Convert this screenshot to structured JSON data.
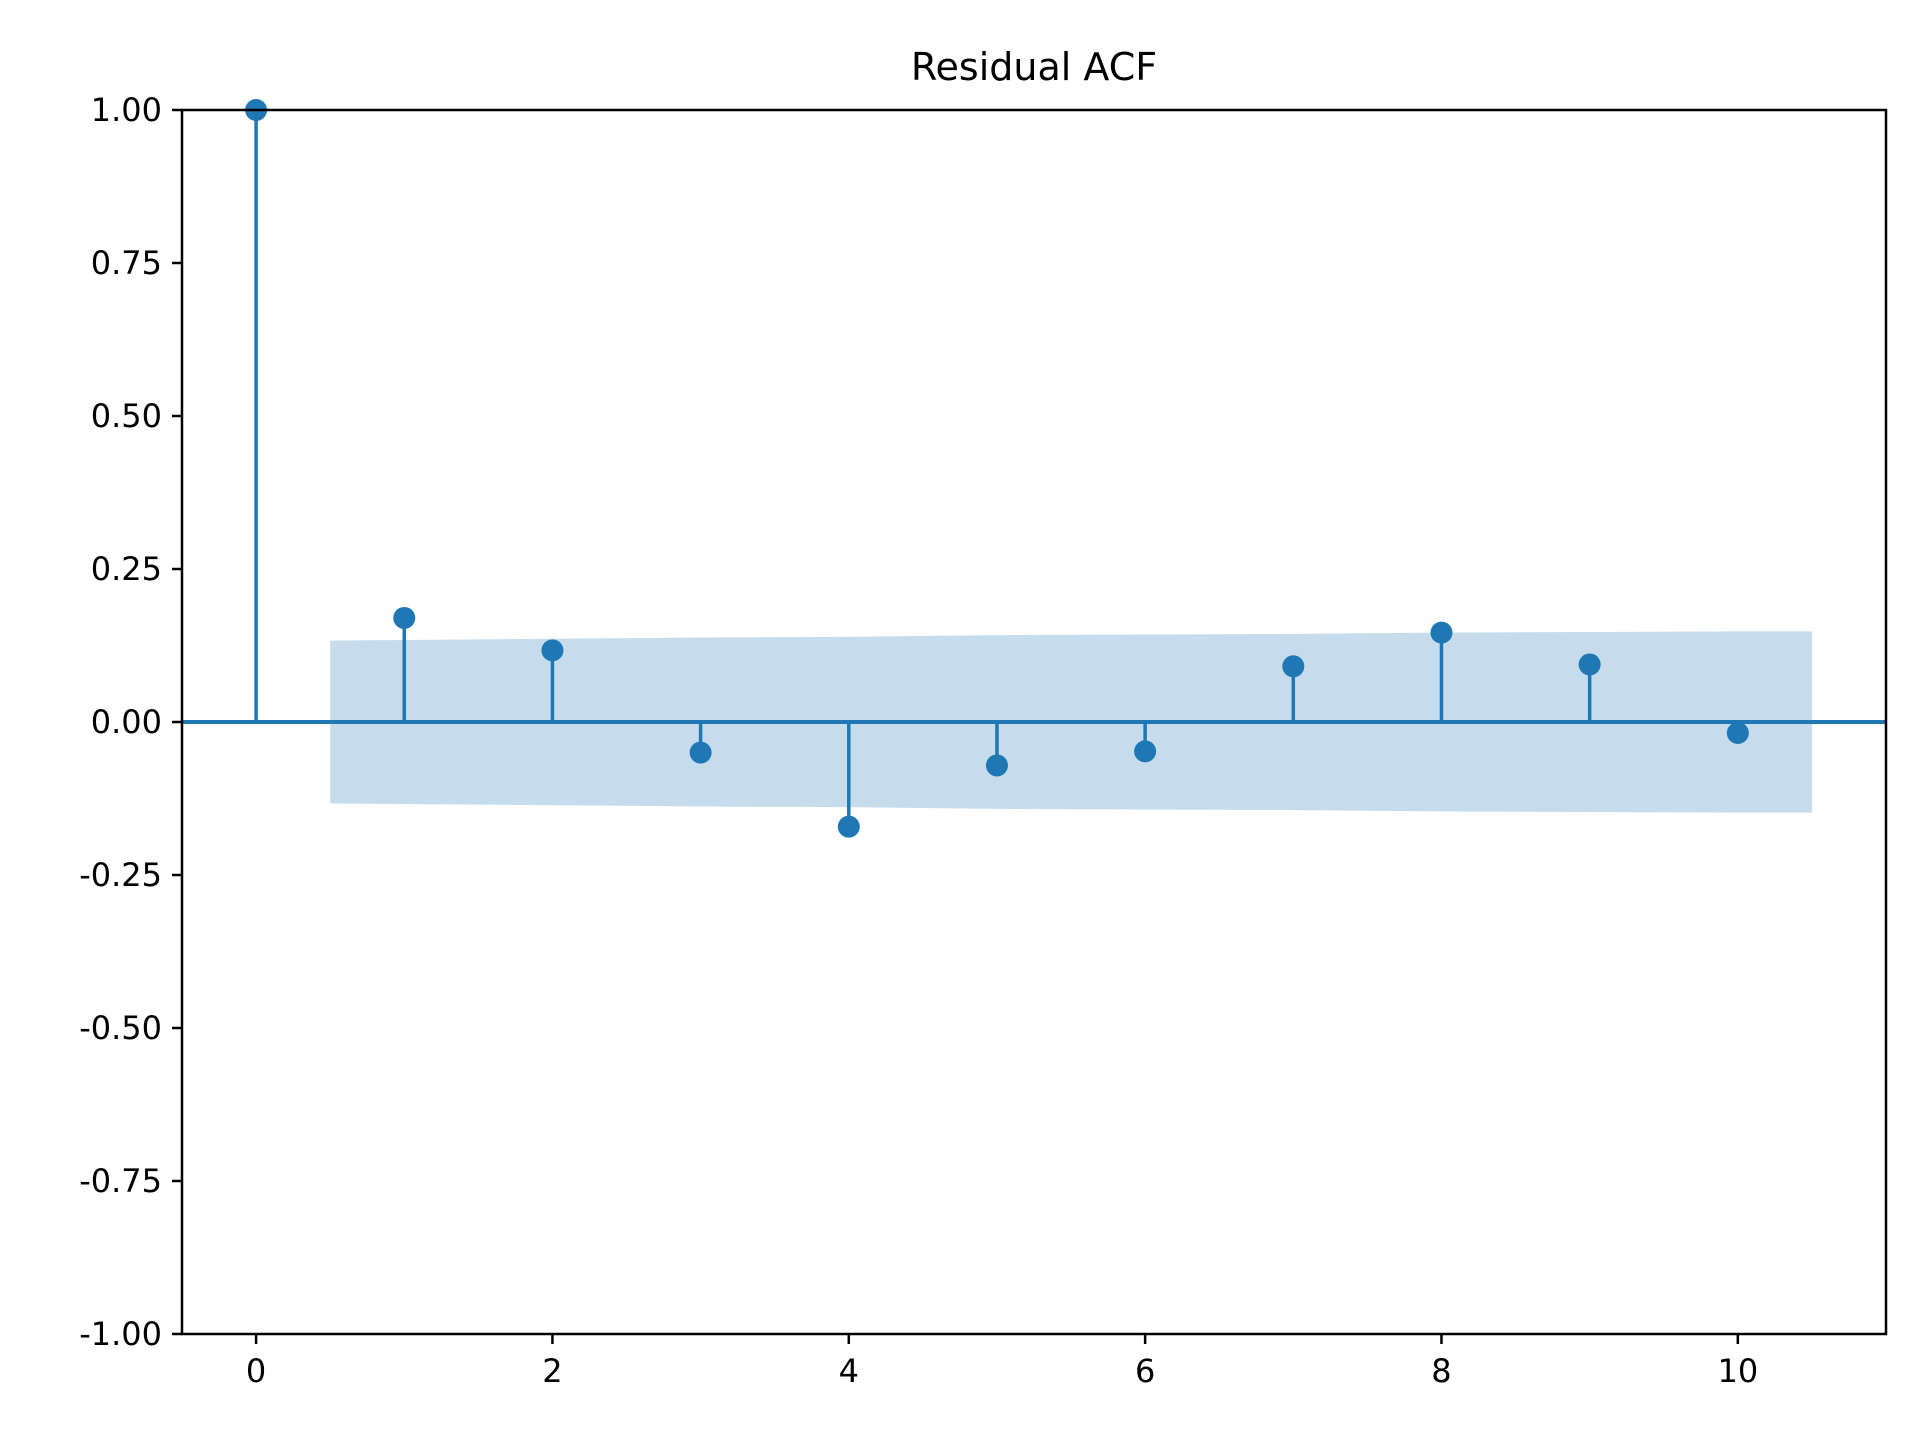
{
  "chart_data": {
    "type": "stem",
    "title": "Residual ACF",
    "xlabel": "",
    "ylabel": "",
    "xlim": [
      -0.5,
      11
    ],
    "ylim": [
      -1.0,
      1.0
    ],
    "x_ticks": [
      0,
      2,
      4,
      6,
      8,
      10
    ],
    "y_ticks": [
      1.0,
      0.75,
      0.5,
      0.25,
      0.0,
      -0.25,
      -0.5,
      -0.75,
      -1.0
    ],
    "y_tick_labels": [
      "1.00",
      "0.75",
      "0.50",
      "0.25",
      "0.00",
      "-0.25",
      "-0.50",
      "-0.75",
      "-1.00"
    ],
    "x_tick_labels": [
      "0",
      "2",
      "4",
      "6",
      "8",
      "10"
    ],
    "lags": [
      0,
      1,
      2,
      3,
      4,
      5,
      6,
      7,
      8,
      9,
      10
    ],
    "values": [
      1.0,
      0.17,
      0.117,
      -0.05,
      -0.171,
      -0.071,
      -0.048,
      0.091,
      0.146,
      0.094,
      -0.018
    ],
    "confidence_band": {
      "x": [
        0.5,
        1,
        2,
        3,
        4,
        5,
        6,
        7,
        8,
        9,
        10,
        10.5
      ],
      "upper": [
        0.133,
        0.134,
        0.136,
        0.138,
        0.139,
        0.142,
        0.143,
        0.144,
        0.146,
        0.147,
        0.148,
        0.148
      ],
      "lower": [
        -0.133,
        -0.134,
        -0.136,
        -0.138,
        -0.139,
        -0.142,
        -0.143,
        -0.144,
        -0.146,
        -0.147,
        -0.148,
        -0.148
      ]
    },
    "grid": false,
    "colors": {
      "stem": "#1f77b4",
      "band": "#c6dcec",
      "axis": "#000000"
    }
  }
}
